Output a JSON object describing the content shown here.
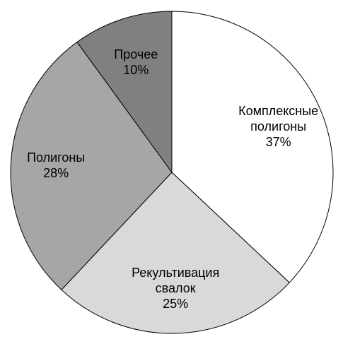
{
  "chart_data": {
    "type": "pie",
    "categories": [
      "Комплексные полигоны",
      "Рекультивация свалок",
      "Полигоны",
      "Прочее"
    ],
    "values": [
      37,
      25,
      28,
      10
    ],
    "value_labels": [
      "37%",
      "25%",
      "28%",
      "10%"
    ],
    "colors": [
      "#ffffff",
      "#d9d9d9",
      "#a6a6a6",
      "#808080"
    ]
  }
}
